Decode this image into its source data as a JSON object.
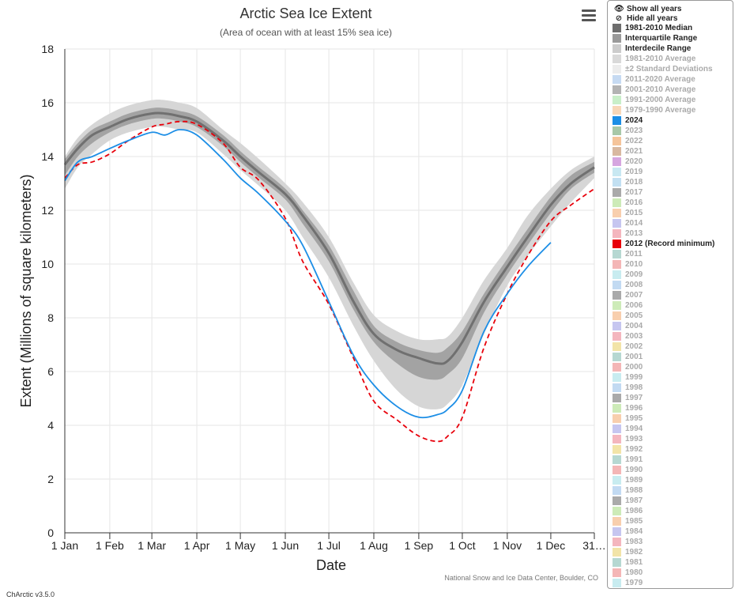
{
  "header": {
    "title": "Arctic Sea Ice Extent",
    "subtitle": "(Area of ocean with at least 15% sea ice)"
  },
  "credits": "National Snow and Ice Data Center, Boulder, CO",
  "version": "ChArctic v3.5.0",
  "menu": {
    "icon": "hamburger-menu-icon"
  },
  "legend": {
    "controls": [
      {
        "label": "Show all years",
        "icon": "eye-icon"
      },
      {
        "label": "Hide all years",
        "icon": "eye-slash-icon"
      }
    ],
    "items": [
      {
        "label": "1981-2010 Median",
        "color": "#6e6e6e",
        "active": true
      },
      {
        "label": "Interquartile Range",
        "color": "#9a9a9a",
        "active": true
      },
      {
        "label": "Interdecile Range",
        "color": "#cccccc",
        "active": true
      },
      {
        "label": "1981-2010 Average",
        "color": "#d9d9d9",
        "active": false
      },
      {
        "label": "±2 Standard Deviations",
        "color": "#ececec",
        "active": false
      },
      {
        "label": "2011-2020 Average",
        "color": "#c6daf2",
        "active": false
      },
      {
        "label": "2001-2010 Average",
        "color": "#b3b3b3",
        "active": false
      },
      {
        "label": "1991-2000 Average",
        "color": "#c9efc9",
        "active": false
      },
      {
        "label": "1979-1990 Average",
        "color": "#f8d7b8",
        "active": false
      },
      {
        "label": "2024",
        "color": "#1c8ee6",
        "active": true
      },
      {
        "label": "2023",
        "color": "#a8c8a8",
        "active": false
      },
      {
        "label": "2022",
        "color": "#f5c49a",
        "active": false
      },
      {
        "label": "2021",
        "color": "#d8b8a0",
        "active": false
      },
      {
        "label": "2020",
        "color": "#d6a6e0",
        "active": false
      },
      {
        "label": "2019",
        "color": "#c8e8f2",
        "active": false
      },
      {
        "label": "2018",
        "color": "#c2e0f2",
        "active": false
      },
      {
        "label": "2017",
        "color": "#aaaaaa",
        "active": false
      },
      {
        "label": "2016",
        "color": "#cdebb8",
        "active": false
      },
      {
        "label": "2015",
        "color": "#f8cfae",
        "active": false
      },
      {
        "label": "2014",
        "color": "#c6c6f0",
        "active": false
      },
      {
        "label": "2013",
        "color": "#f4b6be",
        "active": false
      },
      {
        "label": "2012 (Record minimum)",
        "color": "#e8000b",
        "active": true
      },
      {
        "label": "2011",
        "color": "#b6d8d2",
        "active": false
      },
      {
        "label": "2010",
        "color": "#f4b6b6",
        "active": false
      },
      {
        "label": "2009",
        "color": "#c8ecf0",
        "active": false
      },
      {
        "label": "2008",
        "color": "#c2daf2",
        "active": false
      },
      {
        "label": "2007",
        "color": "#aaaaaa",
        "active": false
      },
      {
        "label": "2006",
        "color": "#cdebb8",
        "active": false
      },
      {
        "label": "2005",
        "color": "#f8cfae",
        "active": false
      },
      {
        "label": "2004",
        "color": "#c6c6f0",
        "active": false
      },
      {
        "label": "2003",
        "color": "#f4b6be",
        "active": false
      },
      {
        "label": "2002",
        "color": "#f2e4a8",
        "active": false
      },
      {
        "label": "2001",
        "color": "#b6d8d2",
        "active": false
      },
      {
        "label": "2000",
        "color": "#f4b6b6",
        "active": false
      },
      {
        "label": "1999",
        "color": "#c8ecf0",
        "active": false
      },
      {
        "label": "1998",
        "color": "#c2daf2",
        "active": false
      },
      {
        "label": "1997",
        "color": "#aaaaaa",
        "active": false
      },
      {
        "label": "1996",
        "color": "#cdebb8",
        "active": false
      },
      {
        "label": "1995",
        "color": "#f8cfae",
        "active": false
      },
      {
        "label": "1994",
        "color": "#c6c6f0",
        "active": false
      },
      {
        "label": "1993",
        "color": "#f4b6be",
        "active": false
      },
      {
        "label": "1992",
        "color": "#f2e4a8",
        "active": false
      },
      {
        "label": "1991",
        "color": "#b6d8d2",
        "active": false
      },
      {
        "label": "1990",
        "color": "#f4b6b6",
        "active": false
      },
      {
        "label": "1989",
        "color": "#c8ecf0",
        "active": false
      },
      {
        "label": "1988",
        "color": "#c2daf2",
        "active": false
      },
      {
        "label": "1987",
        "color": "#aaaaaa",
        "active": false
      },
      {
        "label": "1986",
        "color": "#cdebb8",
        "active": false
      },
      {
        "label": "1985",
        "color": "#f8cfae",
        "active": false
      },
      {
        "label": "1984",
        "color": "#c6c6f0",
        "active": false
      },
      {
        "label": "1983",
        "color": "#f4b6be",
        "active": false
      },
      {
        "label": "1982",
        "color": "#f2e4a8",
        "active": false
      },
      {
        "label": "1981",
        "color": "#b6d8d2",
        "active": false
      },
      {
        "label": "1980",
        "color": "#f4b6b6",
        "active": false
      },
      {
        "label": "1979",
        "color": "#c8ecf0",
        "active": false
      }
    ]
  },
  "chart_data": {
    "type": "line",
    "title": "Arctic Sea Ice Extent",
    "subtitle": "(Area of ocean with at least 15% sea ice)",
    "xlabel": "Date",
    "ylabel": "Extent (Millions of square kilometers)",
    "ylim": [
      0,
      18
    ],
    "xlim": [
      1,
      366
    ],
    "yticks": [
      0,
      2,
      4,
      6,
      8,
      10,
      12,
      14,
      16,
      18
    ],
    "xticks": [
      {
        "day": 1,
        "label": "1 Jan"
      },
      {
        "day": 32,
        "label": "1 Feb"
      },
      {
        "day": 61,
        "label": "1 Mar"
      },
      {
        "day": 92,
        "label": "1 Apr"
      },
      {
        "day": 122,
        "label": "1 May"
      },
      {
        "day": 153,
        "label": "1 Jun"
      },
      {
        "day": 183,
        "label": "1 Jul"
      },
      {
        "day": 214,
        "label": "1 Aug"
      },
      {
        "day": 245,
        "label": "1 Sep"
      },
      {
        "day": 275,
        "label": "1 Oct"
      },
      {
        "day": 306,
        "label": "1 Nov"
      },
      {
        "day": 336,
        "label": "1 Dec"
      },
      {
        "day": 366,
        "label": "31…"
      }
    ],
    "grid": true,
    "x": [
      1,
      10,
      20,
      32,
      45,
      61,
      70,
      80,
      92,
      110,
      122,
      135,
      153,
      165,
      183,
      200,
      214,
      230,
      245,
      258,
      265,
      275,
      290,
      306,
      320,
      336,
      350,
      366
    ],
    "bands": [
      {
        "name": "Interdecile Range",
        "color": "#d6d6d6",
        "lower": [
          12.8,
          13.6,
          14.1,
          14.6,
          14.9,
          15.1,
          15.1,
          15.0,
          14.9,
          14.1,
          13.5,
          12.9,
          12.0,
          11.0,
          9.5,
          7.7,
          6.4,
          5.3,
          4.7,
          4.6,
          4.8,
          5.5,
          7.4,
          9.2,
          10.3,
          11.4,
          12.3,
          13.2
        ],
        "upper": [
          14.0,
          14.7,
          15.2,
          15.6,
          15.9,
          16.1,
          16.1,
          16.0,
          15.8,
          15.0,
          14.5,
          13.9,
          13.0,
          12.3,
          11.0,
          9.3,
          8.1,
          7.5,
          7.2,
          7.2,
          7.3,
          8.0,
          9.4,
          10.6,
          11.8,
          12.8,
          13.5,
          14.0
        ]
      },
      {
        "name": "Interquartile Range",
        "color": "#a3a3a3",
        "lower": [
          13.3,
          14.0,
          14.5,
          14.9,
          15.2,
          15.4,
          15.4,
          15.3,
          15.1,
          14.4,
          13.8,
          13.2,
          12.4,
          11.5,
          10.1,
          8.3,
          7.1,
          6.3,
          5.8,
          5.7,
          5.9,
          6.5,
          8.2,
          9.6,
          10.7,
          11.9,
          12.8,
          13.4
        ],
        "upper": [
          13.9,
          14.5,
          15.0,
          15.3,
          15.6,
          15.8,
          15.8,
          15.7,
          15.5,
          14.8,
          14.2,
          13.6,
          12.8,
          12.0,
          10.7,
          9.0,
          7.7,
          7.1,
          6.8,
          6.7,
          6.9,
          7.5,
          8.9,
          10.2,
          11.3,
          12.5,
          13.3,
          13.8
        ]
      }
    ],
    "series": [
      {
        "name": "1981-2010 Median",
        "color": "#707070",
        "dash": false,
        "width": 3,
        "values": [
          13.7,
          14.3,
          14.8,
          15.1,
          15.4,
          15.6,
          15.6,
          15.5,
          15.3,
          14.6,
          14.0,
          13.4,
          12.6,
          11.8,
          10.4,
          8.6,
          7.4,
          6.8,
          6.5,
          6.3,
          6.4,
          7.1,
          8.6,
          9.9,
          11.0,
          12.2,
          13.0,
          13.6
        ]
      },
      {
        "name": "2012 (Record minimum)",
        "color": "#e8000b",
        "dash": true,
        "width": 1.8,
        "values": [
          13.2,
          13.7,
          13.8,
          14.1,
          14.6,
          15.1,
          15.2,
          15.3,
          15.2,
          14.5,
          13.6,
          13.1,
          11.7,
          10.1,
          8.5,
          6.5,
          4.9,
          4.2,
          3.6,
          3.4,
          3.6,
          4.3,
          6.9,
          8.9,
          10.3,
          11.6,
          12.2,
          12.8
        ]
      },
      {
        "name": "2024",
        "color": "#1c8ee6",
        "dash": false,
        "width": 1.8,
        "values": [
          13.1,
          13.8,
          14.0,
          14.3,
          14.6,
          14.9,
          14.8,
          15.0,
          14.8,
          13.9,
          13.2,
          12.6,
          11.6,
          10.7,
          8.6,
          6.6,
          5.5,
          4.7,
          4.3,
          4.4,
          4.6,
          5.3,
          7.5,
          8.9,
          9.9,
          10.8,
          null,
          null
        ]
      }
    ]
  }
}
